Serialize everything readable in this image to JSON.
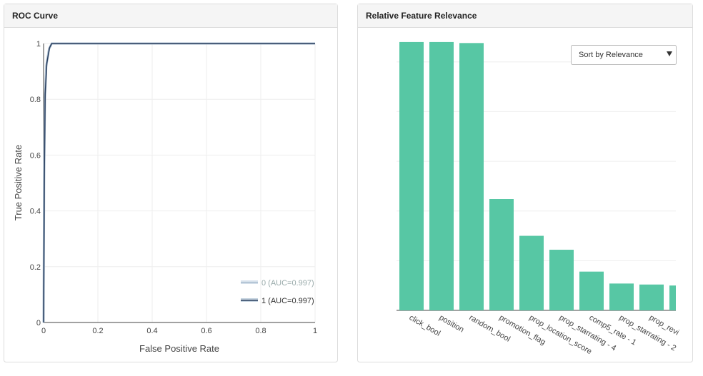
{
  "chart_data": [
    {
      "type": "line",
      "title": "ROC Curve",
      "xlabel": "False Positive Rate",
      "ylabel": "True Positive Rate",
      "xlim": [
        0,
        1
      ],
      "ylim": [
        0,
        1
      ],
      "xticks": [
        0,
        0.2,
        0.4,
        0.6,
        0.8,
        1
      ],
      "yticks": [
        0,
        0.2,
        0.4,
        0.6,
        0.8,
        1
      ],
      "grid": true,
      "legend": "lower right",
      "series": [
        {
          "name": "0 (AUC=0.997)",
          "color": "#a9bccf",
          "x": [
            0,
            0.002,
            0.005,
            0.01,
            0.02,
            0.03,
            1
          ],
          "y": [
            0,
            0.5,
            0.8,
            0.92,
            0.98,
            1,
            1
          ]
        },
        {
          "name": "1 (AUC=0.997)",
          "color": "#2a3f5f",
          "x": [
            0,
            0.003,
            0.006,
            0.012,
            0.022,
            0.03,
            1
          ],
          "y": [
            0,
            0.55,
            0.82,
            0.93,
            0.985,
            1,
            1
          ]
        }
      ]
    },
    {
      "type": "bar",
      "title": "Relative Feature Relevance",
      "color": "#57c7a4",
      "categories": [
        "click_bool",
        "position",
        "random_bool",
        "promotion_flag",
        "prop_location_score",
        "prop_starrating - 4",
        "comp5_rate - 1",
        "prop_starrating - 2",
        "prop_revi",
        null
      ],
      "values": [
        0.27,
        0.27,
        0.269,
        0.112,
        0.075,
        0.061,
        0.039,
        0.027,
        0.026,
        0.025
      ],
      "ylim": [
        0,
        0.28
      ],
      "yticks": [
        0,
        0.05,
        0.1,
        0.15,
        0.2,
        0.25
      ],
      "grid": true
    }
  ],
  "controls": {
    "sort": "Sort by Relevance"
  }
}
